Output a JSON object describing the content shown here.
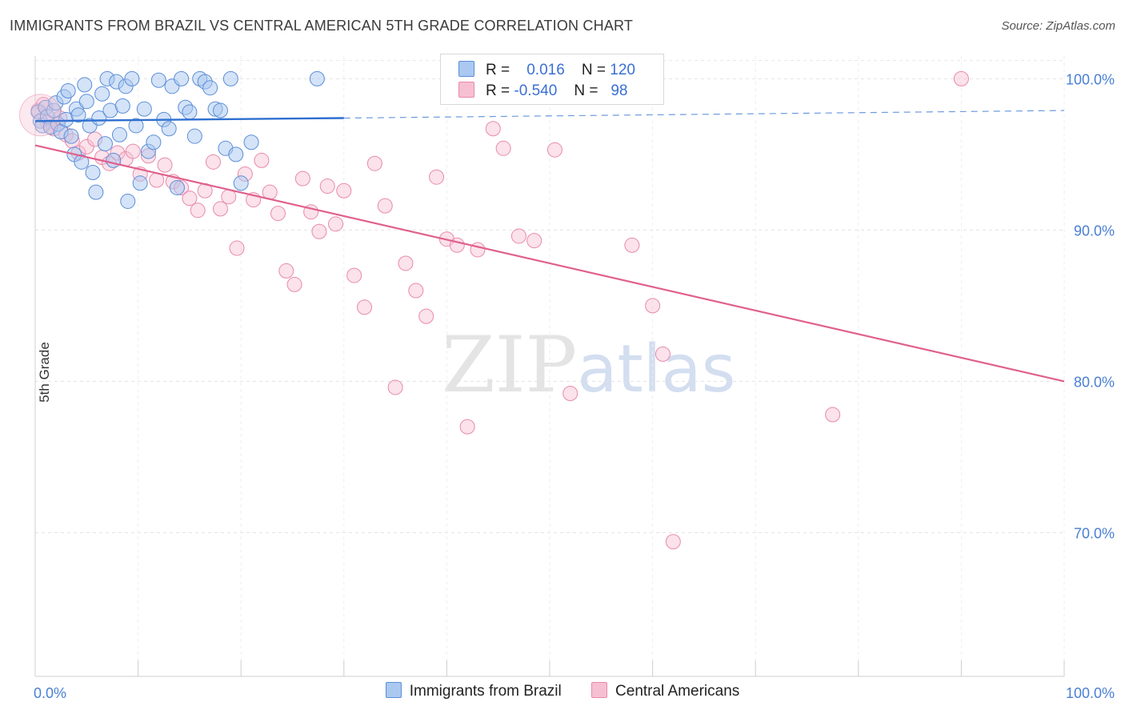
{
  "title": "IMMIGRANTS FROM BRAZIL VS CENTRAL AMERICAN 5TH GRADE CORRELATION CHART",
  "source": "Source: ZipAtlas.com",
  "watermark": {
    "zip": "ZIP",
    "atlas": "atlas"
  },
  "legend": {
    "r_label": "R =",
    "n_label": "N =",
    "series": [
      {
        "r": "0.016",
        "n": "120"
      },
      {
        "r": "-0.540",
        "n": "98"
      }
    ]
  },
  "colors": {
    "brazil_fill": "#aac8f0",
    "brazil_stroke": "#5b8ed8",
    "brazil_line": "#2e6fd0",
    "central_fill": "#f7bfd2",
    "central_stroke": "#e88aaa",
    "central_line": "#e0608e",
    "axis_text": "#4a7fd4"
  },
  "chart_data": {
    "type": "scatter",
    "title": "IMMIGRANTS FROM BRAZIL VS CENTRAL AMERICAN 5TH GRADE CORRELATION CHART",
    "xlabel": "",
    "ylabel": "5th Grade",
    "xlim": [
      0,
      100
    ],
    "ylim": [
      60.5,
      101.5
    ],
    "x_tick_labels": [
      "0.0%",
      "100.0%"
    ],
    "y_ticks": [
      70,
      80,
      90,
      100
    ],
    "y_tick_labels": [
      "70.0%",
      "80.0%",
      "90.0%",
      "100.0%"
    ],
    "grid": true,
    "series": [
      {
        "name": "Immigrants from Brazil",
        "r": 0.016,
        "n": 120,
        "trend": {
          "x": [
            0,
            30
          ],
          "y": [
            97.2,
            97.4
          ],
          "dashed_to": 100,
          "dashed_y_end": 97.9
        },
        "points": [
          [
            0.3,
            97.8
          ],
          [
            0.5,
            97.2
          ],
          [
            0.7,
            96.9
          ],
          [
            1.0,
            98.1
          ],
          [
            1.2,
            97.5
          ],
          [
            1.5,
            96.8
          ],
          [
            1.8,
            97.9
          ],
          [
            2.0,
            98.4
          ],
          [
            2.2,
            97.0
          ],
          [
            2.5,
            96.5
          ],
          [
            2.8,
            98.8
          ],
          [
            3.0,
            97.3
          ],
          [
            3.2,
            99.2
          ],
          [
            3.5,
            96.2
          ],
          [
            3.8,
            95.0
          ],
          [
            4.0,
            98.0
          ],
          [
            4.2,
            97.6
          ],
          [
            4.5,
            94.5
          ],
          [
            4.8,
            99.6
          ],
          [
            5.0,
            98.5
          ],
          [
            5.3,
            96.9
          ],
          [
            5.6,
            93.8
          ],
          [
            5.9,
            92.5
          ],
          [
            6.2,
            97.4
          ],
          [
            6.5,
            99.0
          ],
          [
            6.8,
            95.7
          ],
          [
            7.0,
            100.0
          ],
          [
            7.3,
            97.9
          ],
          [
            7.6,
            94.6
          ],
          [
            7.9,
            99.8
          ],
          [
            8.2,
            96.3
          ],
          [
            8.5,
            98.2
          ],
          [
            8.8,
            99.5
          ],
          [
            9.0,
            91.9
          ],
          [
            9.4,
            100.0
          ],
          [
            9.8,
            96.9
          ],
          [
            10.2,
            93.1
          ],
          [
            10.6,
            98.0
          ],
          [
            11.0,
            95.2
          ],
          [
            11.5,
            95.8
          ],
          [
            12.0,
            99.9
          ],
          [
            12.5,
            97.3
          ],
          [
            13.0,
            96.7
          ],
          [
            13.3,
            99.5
          ],
          [
            13.8,
            92.8
          ],
          [
            14.2,
            100.0
          ],
          [
            14.6,
            98.1
          ],
          [
            15.0,
            97.8
          ],
          [
            15.5,
            96.2
          ],
          [
            16.0,
            100.0
          ],
          [
            16.5,
            99.8
          ],
          [
            17.0,
            99.4
          ],
          [
            17.5,
            98.0
          ],
          [
            18.0,
            97.9
          ],
          [
            18.5,
            95.4
          ],
          [
            19.0,
            100.0
          ],
          [
            19.5,
            95.0
          ],
          [
            20.0,
            93.1
          ],
          [
            21.0,
            95.8
          ],
          [
            27.4,
            100.0
          ]
        ]
      },
      {
        "name": "Central Americans",
        "r": -0.54,
        "n": 98,
        "trend": {
          "x": [
            0,
            100
          ],
          "y": [
            95.6,
            80.0
          ]
        },
        "points": [
          [
            0.3,
            97.9
          ],
          [
            0.8,
            98.3
          ],
          [
            1.2,
            97.1
          ],
          [
            1.8,
            96.7
          ],
          [
            2.4,
            97.4
          ],
          [
            3.0,
            96.3
          ],
          [
            3.6,
            95.9
          ],
          [
            4.2,
            95.1
          ],
          [
            5.0,
            95.5
          ],
          [
            5.8,
            96.0
          ],
          [
            6.5,
            94.8
          ],
          [
            7.2,
            94.4
          ],
          [
            8.0,
            95.1
          ],
          [
            8.8,
            94.7
          ],
          [
            9.5,
            95.2
          ],
          [
            10.2,
            93.7
          ],
          [
            11.0,
            94.9
          ],
          [
            11.8,
            93.3
          ],
          [
            12.6,
            94.3
          ],
          [
            13.4,
            93.2
          ],
          [
            14.2,
            92.8
          ],
          [
            15.0,
            92.1
          ],
          [
            15.8,
            91.3
          ],
          [
            16.5,
            92.6
          ],
          [
            17.3,
            94.5
          ],
          [
            18.0,
            91.4
          ],
          [
            18.8,
            92.2
          ],
          [
            19.6,
            88.8
          ],
          [
            20.4,
            93.7
          ],
          [
            21.2,
            92.0
          ],
          [
            22.0,
            94.6
          ],
          [
            22.8,
            92.5
          ],
          [
            23.6,
            91.1
          ],
          [
            24.4,
            87.3
          ],
          [
            25.2,
            86.4
          ],
          [
            26.0,
            93.4
          ],
          [
            26.8,
            91.2
          ],
          [
            27.6,
            89.9
          ],
          [
            28.4,
            92.9
          ],
          [
            29.2,
            90.4
          ],
          [
            30.0,
            92.6
          ],
          [
            31.0,
            87.0
          ],
          [
            32.0,
            84.9
          ],
          [
            33.0,
            94.4
          ],
          [
            34.0,
            91.6
          ],
          [
            35.0,
            79.6
          ],
          [
            36.0,
            87.8
          ],
          [
            37.0,
            86.0
          ],
          [
            38.0,
            84.3
          ],
          [
            39.0,
            93.5
          ],
          [
            40.0,
            89.4
          ],
          [
            41.0,
            89.0
          ],
          [
            42.0,
            77.0
          ],
          [
            43.0,
            88.7
          ],
          [
            44.5,
            96.7
          ],
          [
            45.5,
            95.4
          ],
          [
            47.0,
            89.6
          ],
          [
            48.5,
            89.3
          ],
          [
            50.5,
            95.3
          ],
          [
            52.0,
            79.2
          ],
          [
            58.0,
            89.0
          ],
          [
            60.0,
            85.0
          ],
          [
            61.0,
            81.8
          ],
          [
            62.0,
            69.4
          ],
          [
            77.5,
            77.8
          ],
          [
            90.0,
            100.0
          ]
        ]
      }
    ]
  },
  "bottom_legend": [
    "Immigrants from Brazil",
    "Central Americans"
  ]
}
